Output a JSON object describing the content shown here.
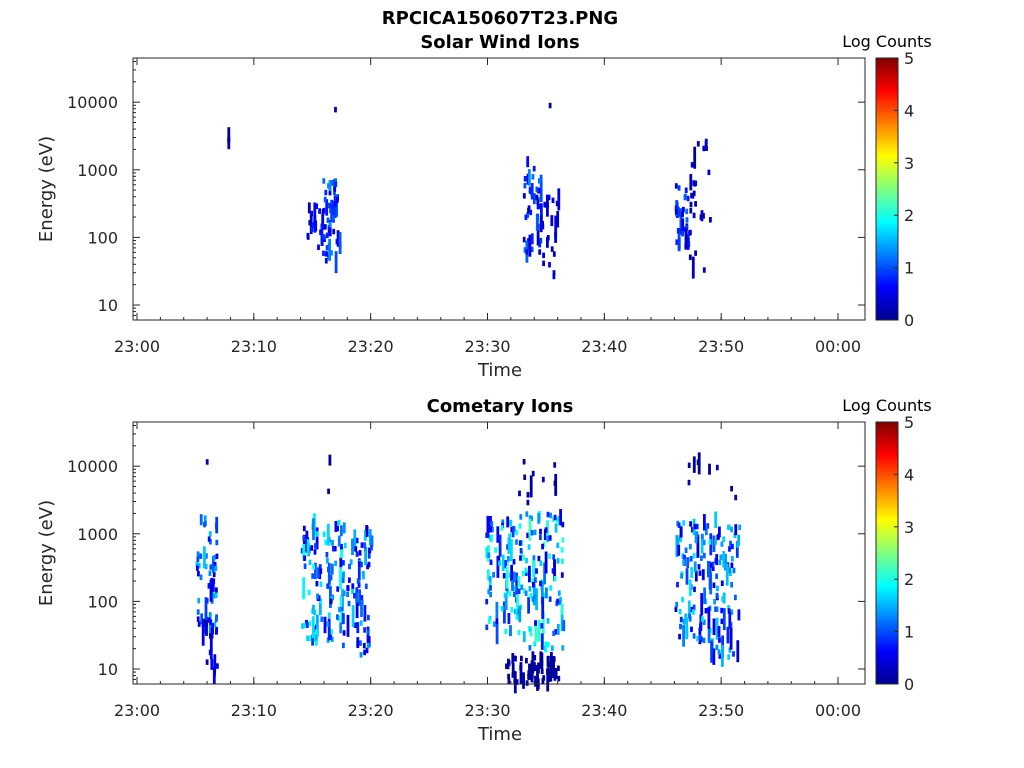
{
  "figure_title": "RPCICA150607T23.PNG",
  "colormap": [
    "#00008f",
    "#0000ff",
    "#0080ff",
    "#00ffff",
    "#80ff80",
    "#ffff00",
    "#ff8000",
    "#ff0000",
    "#800000"
  ],
  "chart_data": [
    {
      "type": "heatmap",
      "title": "Solar Wind Ions",
      "xlabel": "Time",
      "ylabel": "Energy (eV)",
      "x_ticks": [
        "23:00",
        "23:10",
        "23:20",
        "23:30",
        "23:40",
        "23:50",
        "00:00"
      ],
      "y_ticks": [
        "10",
        "100",
        "1000",
        "10000"
      ],
      "y_scale": "log",
      "y_range": [
        6,
        45000
      ],
      "x_range_minutes": [
        0,
        60
      ],
      "colorbar_label": "Log Counts",
      "colorbar_ticks": [
        "0",
        "1",
        "2",
        "3",
        "4",
        "5"
      ],
      "colorbar_range": [
        0,
        5
      ],
      "clusters": [
        {
          "t_start": 7.6,
          "t_end": 7.8,
          "e_min": 2600,
          "e_max": 3000,
          "level": 0.1
        },
        {
          "t_start": 14.5,
          "t_end": 16.0,
          "e_min": 70,
          "e_max": 300,
          "level": 0.5
        },
        {
          "t_start": 15.8,
          "t_end": 17.3,
          "e_min": 40,
          "e_max": 700,
          "level": 0.8
        },
        {
          "t_start": 16.8,
          "t_end": 17.5,
          "e_min": 1500,
          "e_max": 8000,
          "level": 0.1
        },
        {
          "t_start": 33.0,
          "t_end": 34.5,
          "e_min": 60,
          "e_max": 1500,
          "level": 0.8
        },
        {
          "t_start": 34.3,
          "t_end": 36.0,
          "e_min": 25,
          "e_max": 400,
          "level": 0.3
        },
        {
          "t_start": 35.0,
          "t_end": 35.4,
          "e_min": 8500,
          "e_max": 9500,
          "level": 0.1
        },
        {
          "t_start": 46.0,
          "t_end": 47.2,
          "e_min": 70,
          "e_max": 700,
          "level": 0.7
        },
        {
          "t_start": 47.2,
          "t_end": 49.0,
          "e_min": 30,
          "e_max": 3000,
          "level": 0.2
        }
      ]
    },
    {
      "type": "heatmap",
      "title": "Cometary Ions",
      "xlabel": "Time",
      "ylabel": "Energy (eV)",
      "x_ticks": [
        "23:00",
        "23:10",
        "23:20",
        "23:30",
        "23:40",
        "23:50",
        "00:00"
      ],
      "y_ticks": [
        "10",
        "100",
        "1000",
        "10000"
      ],
      "y_scale": "log",
      "y_range": [
        6,
        45000
      ],
      "x_range_minutes": [
        0,
        60
      ],
      "colorbar_label": "Log Counts",
      "colorbar_ticks": [
        "0",
        "1",
        "2",
        "3",
        "4",
        "5"
      ],
      "colorbar_range": [
        0,
        5
      ],
      "clusters": [
        {
          "t_start": 5.0,
          "t_end": 6.8,
          "e_min": 40,
          "e_max": 2000,
          "level": 1.0
        },
        {
          "t_start": 5.5,
          "t_end": 6.8,
          "e_min": 6,
          "e_max": 60,
          "level": 0.4
        },
        {
          "t_start": 5.5,
          "t_end": 6.0,
          "e_min": 11500,
          "e_max": 12500,
          "level": 0.1
        },
        {
          "t_start": 14.0,
          "t_end": 17.5,
          "e_min": 25,
          "e_max": 1500,
          "level": 1.2
        },
        {
          "t_start": 17.5,
          "t_end": 20.0,
          "e_min": 15,
          "e_max": 1300,
          "level": 1.0
        },
        {
          "t_start": 16.0,
          "t_end": 17.0,
          "e_min": 2500,
          "e_max": 19000,
          "level": 0.1
        },
        {
          "t_start": 29.8,
          "t_end": 32.5,
          "e_min": 30,
          "e_max": 1500,
          "level": 1.2
        },
        {
          "t_start": 32.5,
          "t_end": 36.5,
          "e_min": 20,
          "e_max": 2000,
          "level": 1.3
        },
        {
          "t_start": 31.0,
          "t_end": 36.0,
          "e_min": 2500,
          "e_max": 12000,
          "level": 0.1
        },
        {
          "t_start": 31.5,
          "t_end": 36.0,
          "e_min": 6,
          "e_max": 15,
          "level": 0.1
        },
        {
          "t_start": 46.0,
          "t_end": 49.0,
          "e_min": 25,
          "e_max": 1500,
          "level": 1.1
        },
        {
          "t_start": 49.0,
          "t_end": 51.5,
          "e_min": 15,
          "e_max": 1800,
          "level": 1.0
        },
        {
          "t_start": 47.0,
          "t_end": 51.5,
          "e_min": 3000,
          "e_max": 12000,
          "level": 0.1
        }
      ]
    }
  ]
}
